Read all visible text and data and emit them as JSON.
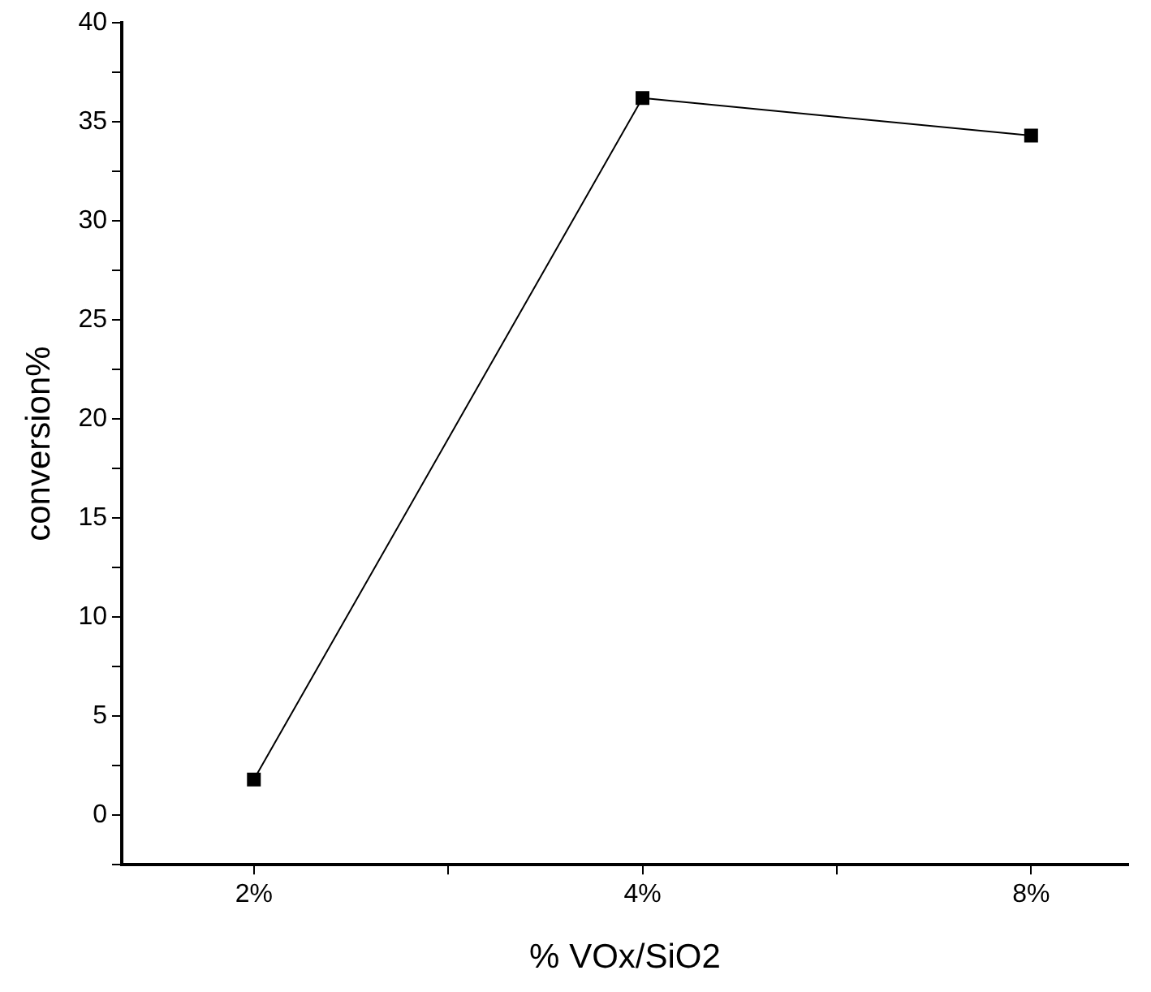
{
  "chart_data": {
    "type": "line",
    "xlabel": "% VOx/SiO2",
    "ylabel": "conversion%",
    "categories": [
      "2%",
      "4%",
      "8%"
    ],
    "series": [
      {
        "color": "#000000",
        "values": [
          1.8,
          36.2,
          34.3
        ]
      }
    ],
    "ylim": [
      -2.5,
      40
    ],
    "yticks": [
      {
        "value": -2.5,
        "label": null
      },
      0,
      {
        "value": 2.5,
        "label": null
      },
      5,
      {
        "value": 7.5,
        "label": null
      },
      10,
      {
        "value": 12.5,
        "label": null
      },
      15,
      {
        "value": 17.5,
        "label": null
      },
      20,
      {
        "value": 22.5,
        "label": null
      },
      25,
      {
        "value": 27.5,
        "label": null
      },
      30,
      {
        "value": 32.5,
        "label": null
      },
      35,
      {
        "value": 37.5,
        "label": null
      },
      40
    ],
    "grid": false,
    "legend": false,
    "marker": "square",
    "line_style": "solid"
  }
}
